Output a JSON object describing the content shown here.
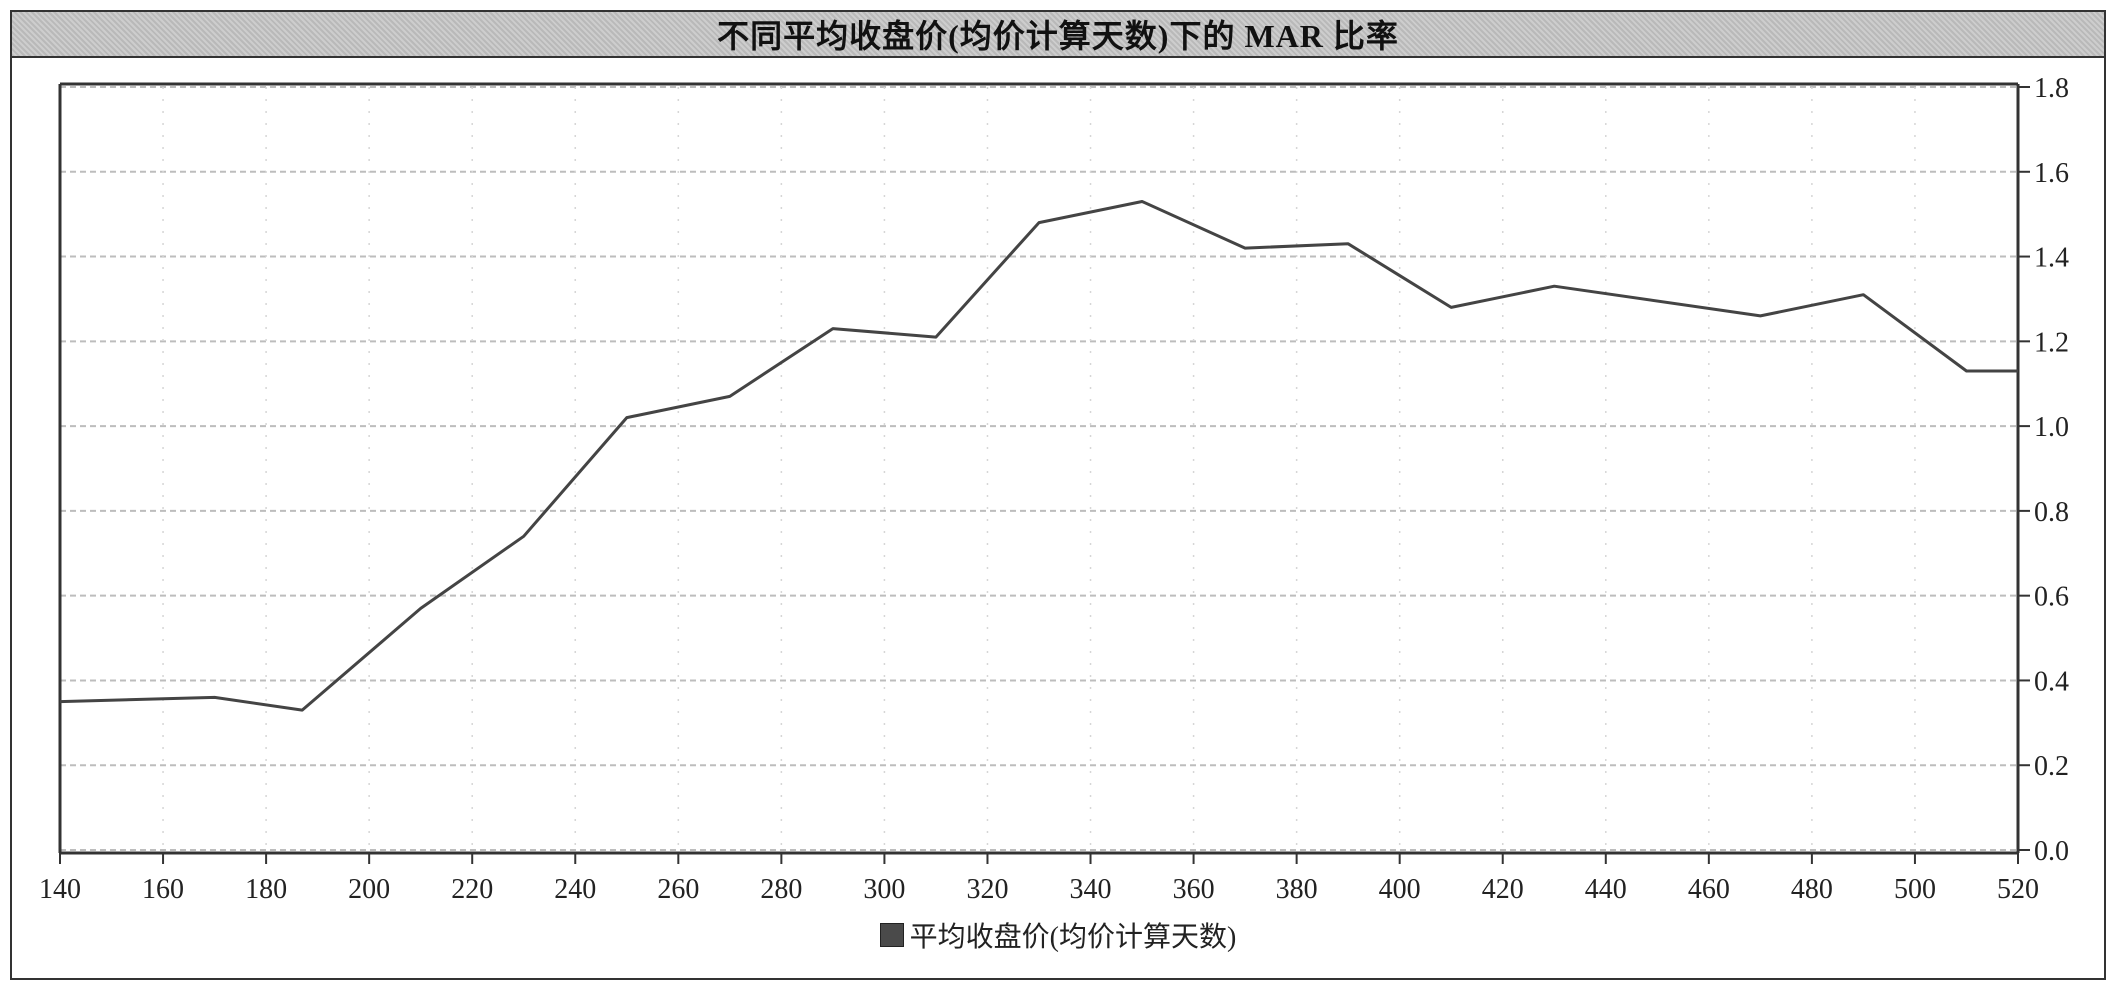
{
  "title": "不同平均收盘价(均价计算天数)下的 MAR 比率",
  "legend": {
    "label": "平均收盘价(均价计算天数)"
  },
  "colors": {
    "line": "#444444",
    "grid": "#bdbdbd",
    "axis": "#333333",
    "title_bg": "#c4c4c4"
  },
  "chart_data": {
    "type": "line",
    "title": "不同平均收盘价(均价计算天数)下的 MAR 比率",
    "xlabel": "",
    "ylabel": "",
    "xlim": [
      140,
      520
    ],
    "ylim": [
      0.0,
      1.8
    ],
    "x_ticks": [
      140,
      160,
      180,
      200,
      220,
      240,
      260,
      280,
      300,
      320,
      340,
      360,
      380,
      400,
      420,
      440,
      460,
      480,
      500,
      520
    ],
    "y_ticks": [
      0.0,
      0.2,
      0.4,
      0.6,
      0.8,
      1.0,
      1.2,
      1.4,
      1.6,
      1.8
    ],
    "y_tick_labels": [
      "0.0",
      "0.2",
      "0.4",
      "0.6",
      "0.8",
      "1.0",
      "1.2",
      "1.4",
      "1.6",
      "1.8"
    ],
    "y_axis_side": "right",
    "grid": true,
    "legend_position": "bottom",
    "series": [
      {
        "name": "平均收盘价(均价计算天数)",
        "x": [
          140,
          170,
          187,
          210,
          230,
          250,
          270,
          290,
          310,
          330,
          350,
          370,
          390,
          410,
          430,
          470,
          490,
          510,
          520
        ],
        "y": [
          0.35,
          0.36,
          0.33,
          0.57,
          0.74,
          1.02,
          1.07,
          1.23,
          1.21,
          1.48,
          1.53,
          1.42,
          1.43,
          1.28,
          1.33,
          1.26,
          1.31,
          1.13,
          1.13
        ]
      }
    ]
  }
}
